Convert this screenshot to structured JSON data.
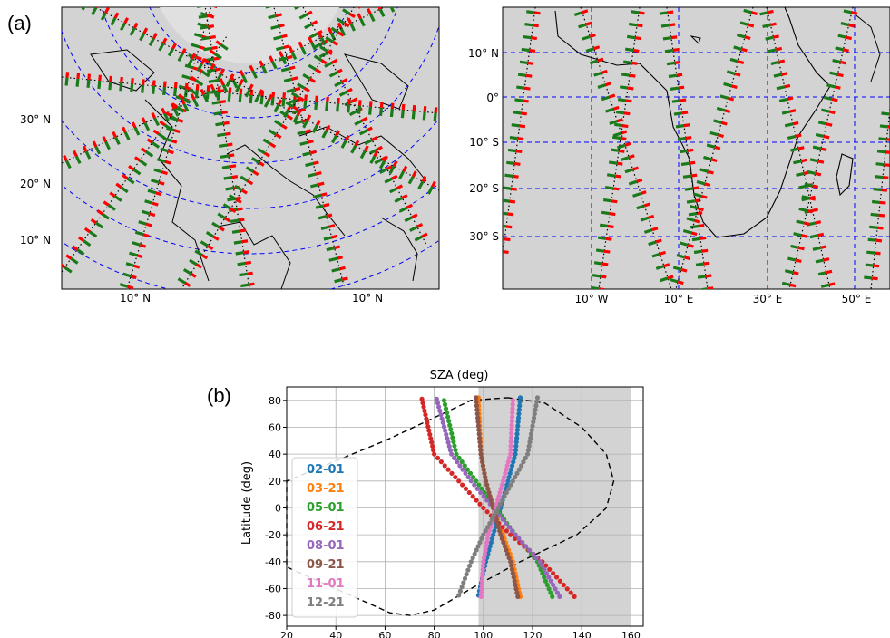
{
  "panel_a": {
    "label": "(a)",
    "left_map": {
      "lat_labels": [
        "30° N",
        "20° N",
        "10° N"
      ],
      "lon_labels": [
        "10° N",
        "10° N"
      ]
    },
    "right_map": {
      "lat_labels": [
        "10° N",
        "0°",
        "10° S",
        "20° S",
        "30° S"
      ],
      "lon_labels": [
        "10° W",
        "10° E",
        "30° E",
        "50° E"
      ]
    }
  },
  "panel_b": {
    "label": "(b)"
  },
  "colors": {
    "map_bg": "#d3d3d3",
    "grid": "#0000ff",
    "track_red": "#ff0000",
    "track_green": "#1a7a1a",
    "shade": "#d3d3d3"
  },
  "chart_data": {
    "type": "scatter",
    "title": "SZA (deg)",
    "xlabel": "",
    "ylabel": "Latitude (deg)",
    "xlim": [
      20,
      165
    ],
    "ylim": [
      -88,
      90
    ],
    "xticks": [
      20,
      40,
      60,
      80,
      100,
      120,
      140,
      160
    ],
    "yticks": [
      80,
      60,
      40,
      20,
      0,
      -20,
      -40,
      -60,
      -80
    ],
    "shaded_x_range": [
      98,
      160
    ],
    "grid": true,
    "legend_position": "left",
    "series": [
      {
        "name": "02-01",
        "color": "#1f77b4",
        "points": [
          [
            115,
            82
          ],
          [
            113,
            40
          ],
          [
            110,
            20
          ],
          [
            107,
            0
          ],
          [
            104,
            -20
          ],
          [
            101,
            -40
          ],
          [
            98,
            -65
          ]
        ]
      },
      {
        "name": "03-21",
        "color": "#ff7f0e",
        "points": [
          [
            98,
            82
          ],
          [
            99,
            40
          ],
          [
            101,
            20
          ],
          [
            104,
            0
          ],
          [
            108,
            -20
          ],
          [
            112,
            -40
          ],
          [
            115,
            -66
          ]
        ]
      },
      {
        "name": "05-01",
        "color": "#2ca02c",
        "points": [
          [
            84,
            80
          ],
          [
            89,
            40
          ],
          [
            97,
            20
          ],
          [
            105,
            0
          ],
          [
            113,
            -20
          ],
          [
            122,
            -40
          ],
          [
            128,
            -66
          ]
        ]
      },
      {
        "name": "06-21",
        "color": "#d62728",
        "points": [
          [
            75,
            81
          ],
          [
            80,
            40
          ],
          [
            90,
            20
          ],
          [
            100,
            0
          ],
          [
            111,
            -20
          ],
          [
            124,
            -40
          ],
          [
            137,
            -66
          ]
        ]
      },
      {
        "name": "08-01",
        "color": "#9467bd",
        "points": [
          [
            81,
            81
          ],
          [
            87,
            40
          ],
          [
            95,
            20
          ],
          [
            104,
            0
          ],
          [
            113,
            -20
          ],
          [
            123,
            -40
          ],
          [
            131,
            -66
          ]
        ]
      },
      {
        "name": "09-21",
        "color": "#8c564b",
        "points": [
          [
            97,
            82
          ],
          [
            99,
            40
          ],
          [
            101,
            20
          ],
          [
            104,
            0
          ],
          [
            107,
            -20
          ],
          [
            111,
            -40
          ],
          [
            114,
            -66
          ]
        ]
      },
      {
        "name": "11-01",
        "color": "#e377c2",
        "points": [
          [
            112,
            80
          ],
          [
            111,
            40
          ],
          [
            108,
            20
          ],
          [
            105,
            0
          ],
          [
            102,
            -20
          ],
          [
            100,
            -40
          ],
          [
            99,
            -66
          ]
        ]
      },
      {
        "name": "12-21",
        "color": "#7f7f7f",
        "points": [
          [
            122,
            82
          ],
          [
            118,
            40
          ],
          [
            112,
            20
          ],
          [
            106,
            0
          ],
          [
            100,
            -20
          ],
          [
            95,
            -40
          ],
          [
            90,
            -65
          ]
        ]
      }
    ],
    "boundary_curve": [
      [
        110,
        82
      ],
      [
        125,
        78
      ],
      [
        140,
        60
      ],
      [
        150,
        40
      ],
      [
        153,
        20
      ],
      [
        150,
        0
      ],
      [
        138,
        -20
      ],
      [
        115,
        -40
      ],
      [
        95,
        -60
      ],
      [
        80,
        -76
      ],
      [
        70,
        -80
      ],
      [
        62,
        -78
      ],
      [
        20,
        -44
      ],
      [
        20,
        20
      ],
      [
        60,
        50
      ],
      [
        95,
        80
      ],
      [
        110,
        82
      ]
    ]
  }
}
